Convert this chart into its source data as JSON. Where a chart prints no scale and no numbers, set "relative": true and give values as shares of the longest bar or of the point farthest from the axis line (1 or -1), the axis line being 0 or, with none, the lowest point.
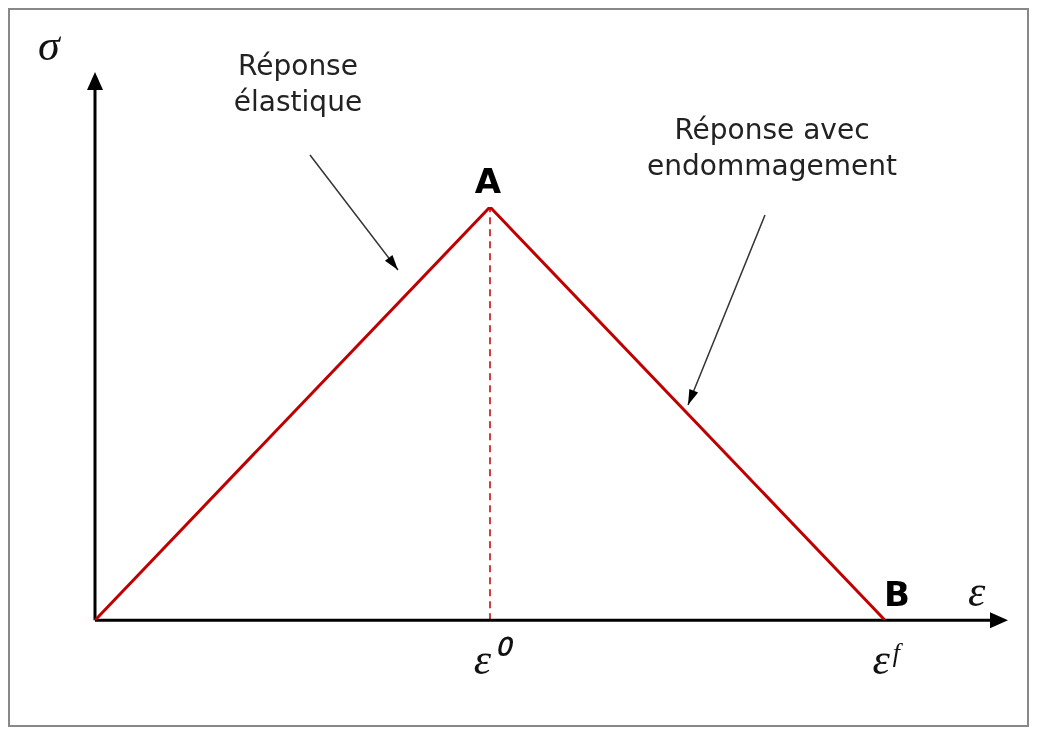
{
  "chart_data": {
    "type": "line",
    "relative": true,
    "xlabel": "ε",
    "ylabel": "σ",
    "categories": [
      null,
      "ε⁰",
      "εᶠ"
    ],
    "values": [
      0,
      1,
      0
    ],
    "color": "#c00000",
    "marker": "none",
    "line_style": "solid",
    "ref_lines": [
      {
        "axis": "x",
        "value": "ε⁰",
        "color": "#c00000",
        "line_style": "dashed"
      }
    ],
    "annotations": [
      "Réponse élastique",
      "Réponse avec endommagement",
      {
        "text": "A",
        "x": "ε⁰",
        "y": 1
      },
      {
        "text": "B",
        "x": "εᶠ",
        "y": 0
      }
    ]
  }
}
